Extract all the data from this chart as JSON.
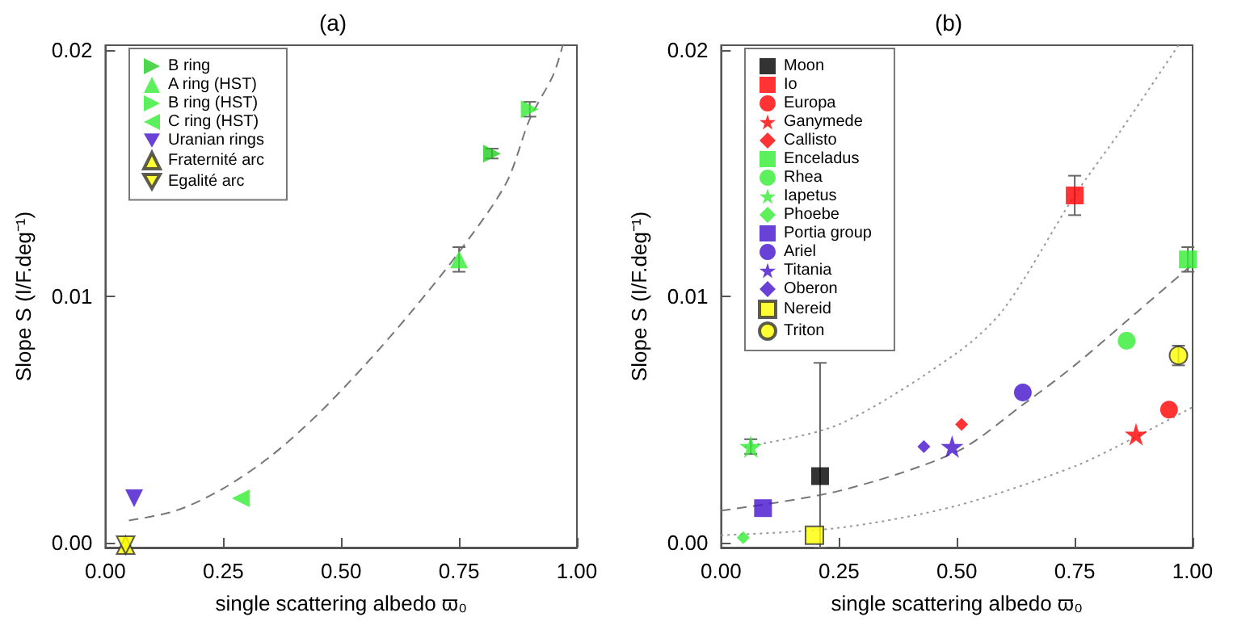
{
  "chart_data": [
    {
      "type": "scatter",
      "title": "(a)",
      "xlabel": "single scattering albedo ϖ₀",
      "ylabel": "Slope S (I/F.deg⁻¹)",
      "xlim": [
        0,
        1
      ],
      "ylim": [
        -0.0002,
        0.0202
      ],
      "xticks": [
        {
          "value": 0,
          "label": "0.00"
        },
        {
          "value": 0.25,
          "label": "0.25"
        },
        {
          "value": 0.5,
          "label": "0.50"
        },
        {
          "value": 0.75,
          "label": "0.75"
        },
        {
          "value": 1,
          "label": "1.00"
        }
      ],
      "yticks": [
        {
          "value": 0,
          "label": "0.00"
        },
        {
          "value": 0.01,
          "label": "0.01"
        },
        {
          "value": 0.02,
          "label": "0.02"
        }
      ],
      "grid": false,
      "legend": "top left",
      "series": [
        {
          "name": "B ring",
          "color": "#22cc22",
          "marker": "triangle-right",
          "x": [
            0.82
          ],
          "values": [
            0.0158
          ],
          "errors": [
            0.0002
          ]
        },
        {
          "name": "A ring (HST)",
          "color": "#33ee33",
          "marker": "triangle",
          "x": [
            0.75
          ],
          "values": [
            0.0115
          ],
          "errors": [
            0.0005
          ]
        },
        {
          "name": "B ring (HST)",
          "color": "#33ee33",
          "marker": "triangle-right",
          "x": [
            0.9
          ],
          "values": [
            0.0176
          ],
          "errors": [
            0.0003
          ]
        },
        {
          "name": "C ring (HST)",
          "color": "#33ee33",
          "marker": "triangle-left",
          "x": [
            0.287
          ],
          "values": [
            0.0018
          ]
        },
        {
          "name": "Uranian rings",
          "color": "#4411cc",
          "marker": "triangle-down",
          "x": [
            0.061
          ],
          "values": [
            0.0018
          ]
        },
        {
          "name": "Fraternité arc",
          "color": "#ffff00",
          "marker": "triangle",
          "x": [
            0.043
          ],
          "values": [
            -0.0001
          ]
        },
        {
          "name": "Egalité arc",
          "color": "#ffff00",
          "marker": "triangle-down",
          "x": [
            0.043
          ],
          "values": [
            -0.0001
          ]
        },
        {
          "type": "line",
          "color": "#777777",
          "line_style": "dashed",
          "marker": "none",
          "x": [
            0.05,
            0.15,
            0.25,
            0.35,
            0.45,
            0.55,
            0.65,
            0.75,
            0.85,
            0.9,
            0.95,
            0.97
          ],
          "values": [
            0.0009,
            0.0013,
            0.0022,
            0.0035,
            0.0052,
            0.0072,
            0.0094,
            0.0118,
            0.0146,
            0.0172,
            0.019,
            0.0202
          ]
        }
      ]
    },
    {
      "type": "scatter",
      "title": "(b)",
      "xlabel": "single scattering albedo ϖ₀",
      "ylabel": "Slope S (I/F.deg⁻¹)",
      "xlim": [
        0,
        1
      ],
      "ylim": [
        -0.0002,
        0.0202
      ],
      "xticks": [
        {
          "value": 0,
          "label": "0.00"
        },
        {
          "value": 0.25,
          "label": "0.25"
        },
        {
          "value": 0.5,
          "label": "0.50"
        },
        {
          "value": 0.75,
          "label": "0.75"
        },
        {
          "value": 1,
          "label": "1.00"
        }
      ],
      "yticks": [
        {
          "value": 0,
          "label": "0.00"
        },
        {
          "value": 0.01,
          "label": "0.01"
        },
        {
          "value": 0.02,
          "label": "0.02"
        }
      ],
      "grid": false,
      "legend": "top left",
      "series": [
        {
          "name": "Moon",
          "color": "#000000",
          "marker": "square",
          "x": [
            0.21
          ],
          "values": [
            0.0027
          ],
          "errors": [
            [
              -0.0002,
              0.0073
            ]
          ]
        },
        {
          "name": "Io",
          "color": "#ff0000",
          "marker": "square",
          "x": [
            0.75
          ],
          "values": [
            0.0141
          ],
          "errors": [
            0.0008
          ]
        },
        {
          "name": "Europa",
          "color": "#ff0000",
          "marker": "circle",
          "x": [
            0.95
          ],
          "values": [
            0.0054
          ]
        },
        {
          "name": "Ganymede",
          "color": "#ff0000",
          "marker": "star",
          "x": [
            0.88
          ],
          "values": [
            0.0044
          ]
        },
        {
          "name": "Callisto",
          "color": "#ff0000",
          "marker": "diamond",
          "x": [
            0.51
          ],
          "values": [
            0.0048
          ]
        },
        {
          "name": "Enceladus",
          "color": "#33ee33",
          "marker": "square",
          "x": [
            0.99
          ],
          "values": [
            0.0115
          ],
          "errors": [
            0.0005
          ]
        },
        {
          "name": "Rhea",
          "color": "#33ee33",
          "marker": "circle",
          "x": [
            0.86
          ],
          "values": [
            0.0082
          ]
        },
        {
          "name": "Iapetus",
          "color": "#33ee33",
          "marker": "star",
          "x": [
            0.063
          ],
          "values": [
            0.0039
          ],
          "errors": [
            0.0003
          ]
        },
        {
          "name": "Phoebe",
          "color": "#33ee33",
          "marker": "diamond",
          "x": [
            0.047
          ],
          "values": [
            0.0002
          ]
        },
        {
          "name": "Portia group",
          "color": "#4411cc",
          "marker": "square",
          "x": [
            0.089
          ],
          "values": [
            0.0014
          ]
        },
        {
          "name": "Ariel",
          "color": "#4411cc",
          "marker": "circle",
          "x": [
            0.64
          ],
          "values": [
            0.0061
          ]
        },
        {
          "name": "Titania",
          "color": "#4411cc",
          "marker": "star",
          "x": [
            0.49
          ],
          "values": [
            0.0039
          ]
        },
        {
          "name": "Oberon",
          "color": "#4411cc",
          "marker": "diamond",
          "x": [
            0.43
          ],
          "values": [
            0.0039
          ]
        },
        {
          "name": "Nereid",
          "color": "#ffff00",
          "marker": "square",
          "x": [
            0.198
          ],
          "values": [
            0.0003
          ]
        },
        {
          "name": "Triton",
          "color": "#ffff00",
          "marker": "circle",
          "x": [
            0.97
          ],
          "values": [
            0.0076
          ],
          "errors": [
            0.0004
          ]
        },
        {
          "type": "line",
          "color": "#999999",
          "line_style": "dotted",
          "marker": "none",
          "x": [
            0.05,
            0.25,
            0.5,
            0.6,
            0.75,
            0.85,
            0.97
          ],
          "values": [
            0.0039,
            0.0048,
            0.0077,
            0.0095,
            0.0141,
            0.0168,
            0.0202
          ]
        },
        {
          "type": "line",
          "color": "#777777",
          "line_style": "dashed",
          "marker": "none",
          "x": [
            0,
            0.25,
            0.5,
            0.64,
            0.75,
            0.86,
            1
          ],
          "values": [
            0.0013,
            0.0021,
            0.0037,
            0.0056,
            0.0072,
            0.009,
            0.0113
          ]
        },
        {
          "type": "line",
          "color": "#999999",
          "line_style": "dotted",
          "marker": "none",
          "x": [
            0,
            0.25,
            0.5,
            0.75,
            0.88,
            1
          ],
          "values": [
            0.0003,
            0.0006,
            0.0015,
            0.0031,
            0.0043,
            0.0055
          ]
        }
      ]
    }
  ]
}
